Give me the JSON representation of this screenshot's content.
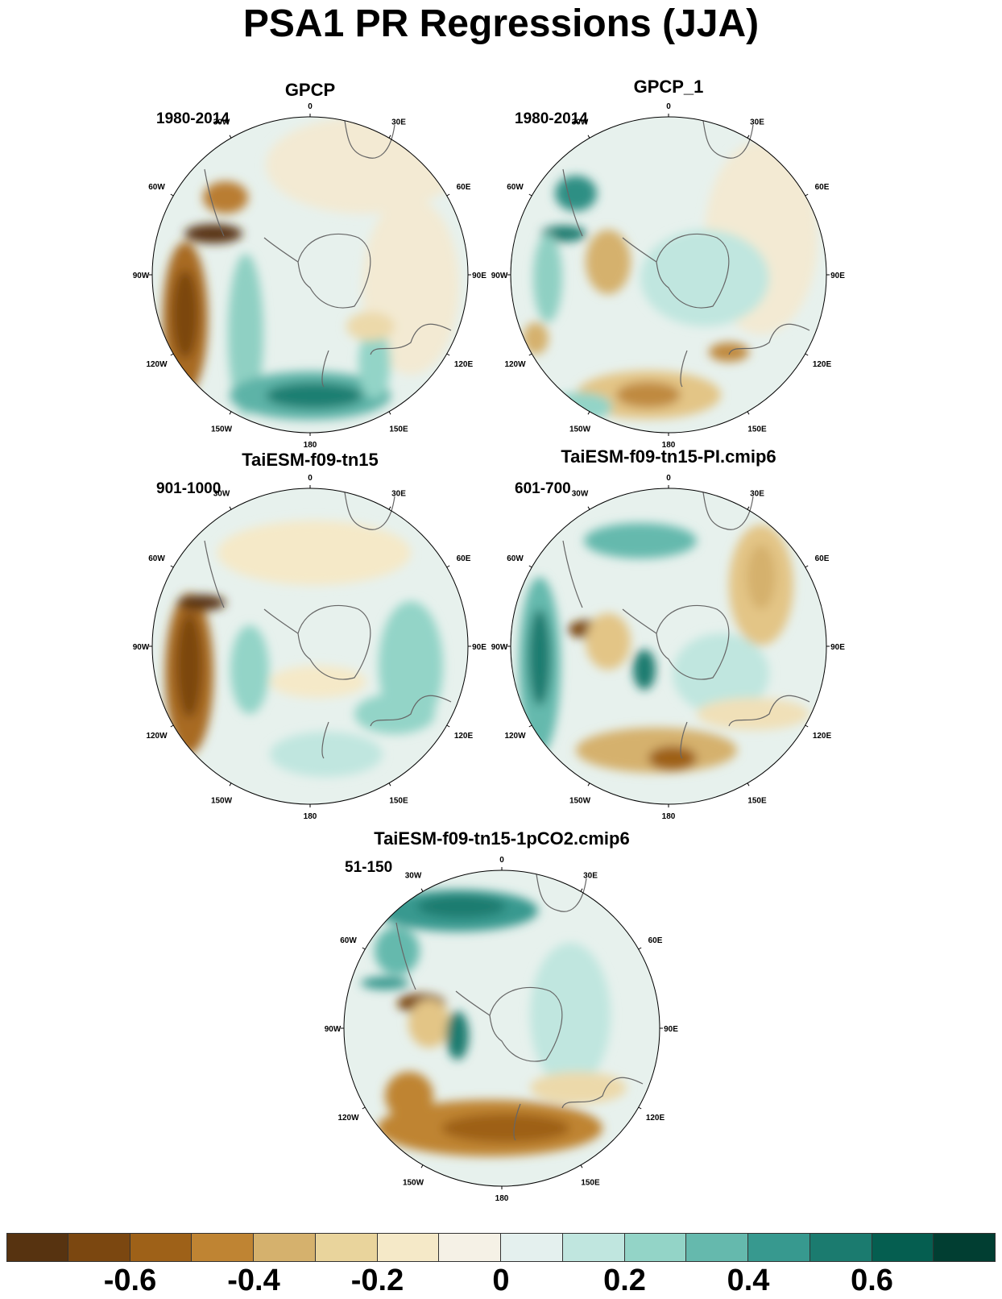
{
  "title": "PSA1 PR Regressions (JJA)",
  "lon_labels": [
    "0",
    "30E",
    "60E",
    "90E",
    "120E",
    "150E",
    "180",
    "150W",
    "120W",
    "90W",
    "60W",
    "30W"
  ],
  "panels": [
    {
      "id": "gpcp",
      "title": "GPCP",
      "period": "1980-2014"
    },
    {
      "id": "gpcp1",
      "title": "GPCP_1",
      "period": "1980-2014"
    },
    {
      "id": "taiesm",
      "title": "TaiESM-f09-tn15",
      "period": "901-1000"
    },
    {
      "id": "taiesm-pi",
      "title": "TaiESM-f09-tn15-PI.cmip6",
      "period": "601-700"
    },
    {
      "id": "taiesm-1pco2",
      "title": "TaiESM-f09-tn15-1pCO2.cmip6",
      "period": "51-150"
    }
  ],
  "colorbar": {
    "colors": [
      "#573310",
      "#7b4710",
      "#9e6118",
      "#bf8433",
      "#d5b16d",
      "#e9d49c",
      "#f5e9c8",
      "#f5f1e6",
      "#e4f0ee",
      "#c0e6df",
      "#93d4c7",
      "#65b9ad",
      "#37998f",
      "#1b7b6f",
      "#055e50",
      "#013e32"
    ],
    "tick_labels": [
      "-0.6",
      "-0.4",
      "-0.2",
      "0",
      "0.2",
      "0.4",
      "0.6"
    ],
    "tick_values": [
      -0.6,
      -0.4,
      -0.2,
      0,
      0.2,
      0.4,
      0.6
    ]
  }
}
